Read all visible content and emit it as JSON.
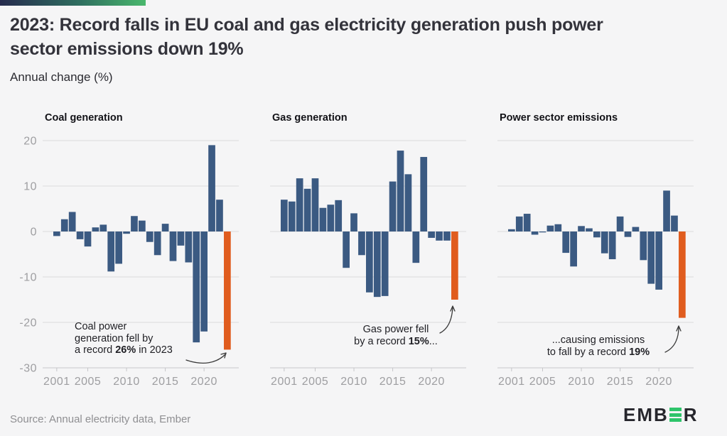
{
  "header": {
    "title": "2023: Record falls in EU coal and gas electricity generation push power sector emissions down 19%",
    "subtitle": "Annual change (%)"
  },
  "colors": {
    "background": "#f5f5f6",
    "accent_gradient_start": "#262b4e",
    "accent_gradient_end": "#4ab86d",
    "bar": "#3b5a82",
    "highlight_bar": "#e05c1e",
    "gridline": "#dcdcdc",
    "axis_line": "#c6c6c9",
    "axis_text": "#9e9ea1",
    "logo_green": "#2ec46a",
    "logo_dark": "#26262c"
  },
  "chart_data": [
    {
      "type": "bar",
      "title": "Coal generation",
      "show_y_labels": true,
      "ylim": [
        -30,
        20
      ],
      "yticks": [
        20,
        10,
        0,
        -10,
        -20,
        -30
      ],
      "xticks": [
        2001,
        2005,
        2010,
        2015,
        2020
      ],
      "years": [
        2001,
        2002,
        2003,
        2004,
        2005,
        2006,
        2007,
        2008,
        2009,
        2010,
        2011,
        2012,
        2013,
        2014,
        2015,
        2016,
        2017,
        2018,
        2019,
        2020,
        2021,
        2022,
        2023
      ],
      "values": [
        -1.0,
        2.7,
        4.3,
        -1.7,
        -3.3,
        0.9,
        1.5,
        -8.8,
        -7.1,
        -0.5,
        3.4,
        2.4,
        -2.3,
        -5.2,
        1.7,
        -6.5,
        -3.1,
        -6.8,
        -24.4,
        -22.0,
        19.0,
        7.0,
        -26.0
      ],
      "highlight_year": 2023,
      "annotation": {
        "lines": [
          [
            {
              "t": "Coal power"
            }
          ],
          [
            {
              "t": "generation fell by"
            }
          ],
          [
            {
              "t": "a record "
            },
            {
              "t": "26%",
              "b": true
            },
            {
              "t": " in 2023"
            }
          ]
        ]
      }
    },
    {
      "type": "bar",
      "title": "Gas generation",
      "show_y_labels": false,
      "ylim": [
        -30,
        20
      ],
      "yticks": [
        20,
        10,
        0,
        -10,
        -20,
        -30
      ],
      "xticks": [
        2001,
        2005,
        2010,
        2015,
        2020
      ],
      "years": [
        2001,
        2002,
        2003,
        2004,
        2005,
        2006,
        2007,
        2008,
        2009,
        2010,
        2011,
        2012,
        2013,
        2014,
        2015,
        2016,
        2017,
        2018,
        2019,
        2020,
        2021,
        2022,
        2023
      ],
      "values": [
        7.0,
        6.6,
        11.7,
        9.4,
        11.7,
        5.2,
        5.9,
        6.9,
        -8.0,
        4.0,
        -5.2,
        -13.4,
        -14.4,
        -14.2,
        11.0,
        17.8,
        12.6,
        -6.9,
        16.4,
        -1.4,
        -2.0,
        -2.0,
        -15.0
      ],
      "highlight_year": 2023,
      "annotation": {
        "lines": [
          [
            {
              "t": "Gas power fell"
            }
          ],
          [
            {
              "t": "by a record "
            },
            {
              "t": "15%",
              "b": true
            },
            {
              "t": "..."
            }
          ]
        ]
      }
    },
    {
      "type": "bar",
      "title": "Power sector emissions",
      "show_y_labels": false,
      "ylim": [
        -30,
        20
      ],
      "yticks": [
        20,
        10,
        0,
        -10,
        -20,
        -30
      ],
      "xticks": [
        2001,
        2005,
        2010,
        2015,
        2020
      ],
      "years": [
        2001,
        2002,
        2003,
        2004,
        2005,
        2006,
        2007,
        2008,
        2009,
        2010,
        2011,
        2012,
        2013,
        2014,
        2015,
        2016,
        2017,
        2018,
        2019,
        2020,
        2021,
        2022,
        2023
      ],
      "values": [
        0.5,
        3.3,
        3.9,
        -0.7,
        -0.2,
        1.3,
        1.6,
        -4.7,
        -7.7,
        1.2,
        0.7,
        -1.3,
        -4.8,
        -6.1,
        3.3,
        -1.2,
        1.0,
        -6.3,
        -11.5,
        -12.8,
        9.0,
        3.5,
        -19.0
      ],
      "highlight_year": 2023,
      "annotation": {
        "lines": [
          [
            {
              "t": "...causing emissions"
            }
          ],
          [
            {
              "t": "to fall by a record "
            },
            {
              "t": "19%",
              "b": true
            }
          ]
        ]
      }
    }
  ],
  "footer": {
    "source": "Source: Annual electricity data, Ember",
    "logo_prefix": "EMB",
    "logo_suffix": "R"
  }
}
